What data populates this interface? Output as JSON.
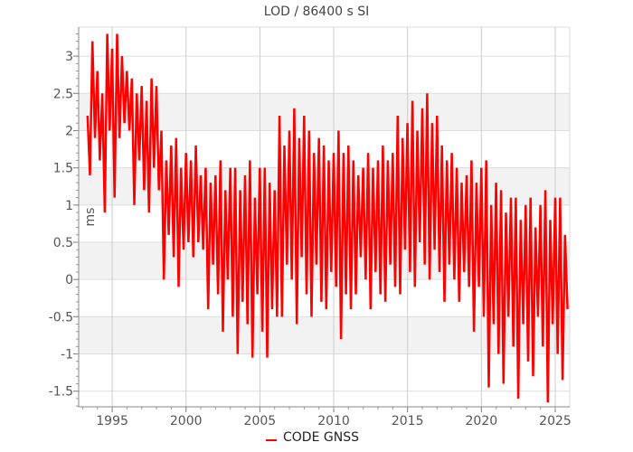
{
  "chart_data": {
    "type": "line",
    "title": "LOD / 86400 s SI",
    "xlabel": "",
    "ylabel": "ms",
    "xlim": [
      1992.73,
      2025.98
    ],
    "ylim": [
      -1.71,
      3.39
    ],
    "x_ticks": [
      1995,
      2000,
      2005,
      2010,
      2015,
      2020,
      2025
    ],
    "x_tick_labels": [
      "1995",
      "2000",
      "2005",
      "2010",
      "2015",
      "2020",
      "2025"
    ],
    "y_ticks": [
      -1.5,
      -1,
      -0.5,
      0,
      0.5,
      1,
      1.5,
      2,
      2.5,
      3
    ],
    "y_tick_labels": [
      "-1.5",
      "-1",
      "-0.5",
      "0",
      "0.5",
      "1",
      "1.5",
      "2",
      "2.5",
      "3"
    ],
    "grid": true,
    "legend_position": "bottom-center",
    "series": [
      {
        "name": "CODE GNSS",
        "color": "#ff0000",
        "x_start": 1993.33,
        "x_step": 0.16667,
        "values": [
          2.2,
          1.4,
          3.2,
          1.9,
          2.8,
          1.6,
          2.5,
          0.9,
          3.3,
          2.0,
          3.1,
          1.1,
          3.3,
          1.9,
          3.0,
          2.1,
          2.8,
          2.0,
          2.7,
          1.0,
          2.5,
          1.6,
          2.6,
          1.2,
          2.4,
          0.9,
          2.7,
          1.5,
          2.6,
          1.2,
          2.0,
          0.0,
          1.6,
          0.6,
          1.8,
          0.3,
          1.9,
          -0.1,
          1.5,
          0.4,
          1.7,
          0.5,
          1.6,
          0.3,
          1.8,
          0.5,
          1.4,
          0.4,
          1.5,
          -0.4,
          1.3,
          0.2,
          1.4,
          -0.2,
          1.6,
          -0.7,
          1.2,
          0.0,
          1.5,
          -0.5,
          1.5,
          -1.0,
          1.2,
          -0.3,
          1.4,
          -0.6,
          1.6,
          -1.05,
          1.1,
          -0.2,
          1.5,
          -0.7,
          1.5,
          -1.05,
          1.3,
          -0.4,
          1.2,
          -0.5,
          2.2,
          -0.5,
          1.8,
          0.2,
          2.0,
          0.0,
          2.3,
          -0.6,
          1.9,
          0.3,
          2.2,
          -0.2,
          2.0,
          -0.5,
          1.7,
          0.2,
          1.9,
          -0.3,
          1.8,
          -0.4,
          1.6,
          0.1,
          1.7,
          -0.1,
          2.0,
          -0.8,
          1.7,
          -0.2,
          1.8,
          -0.4,
          1.6,
          -0.2,
          1.4,
          0.3,
          1.5,
          0.0,
          1.7,
          -0.4,
          1.5,
          0.1,
          1.6,
          -0.2,
          1.8,
          -0.3,
          1.6,
          0.2,
          1.7,
          -0.1,
          2.2,
          -0.2,
          1.9,
          0.4,
          2.1,
          0.1,
          2.4,
          -0.1,
          2.0,
          0.5,
          2.3,
          0.2,
          2.5,
          0.0,
          2.1,
          0.4,
          2.2,
          0.1,
          1.8,
          -0.3,
          1.6,
          0.2,
          1.7,
          0.0,
          1.5,
          -0.3,
          1.3,
          0.1,
          1.4,
          -0.1,
          1.6,
          -0.7,
          1.3,
          -0.1,
          1.5,
          -0.5,
          1.6,
          -1.45,
          1.0,
          -0.6,
          1.3,
          -1.0,
          1.2,
          -1.4,
          0.9,
          -0.5,
          1.1,
          -0.9,
          1.1,
          -1.6,
          0.8,
          -0.6,
          1.0,
          -1.1,
          1.1,
          -1.3,
          0.7,
          -0.5,
          1.0,
          -0.9,
          1.2,
          -1.65,
          0.8,
          -0.6,
          1.1,
          -1.0,
          1.1,
          -1.35,
          0.6,
          -0.4
        ]
      }
    ]
  }
}
